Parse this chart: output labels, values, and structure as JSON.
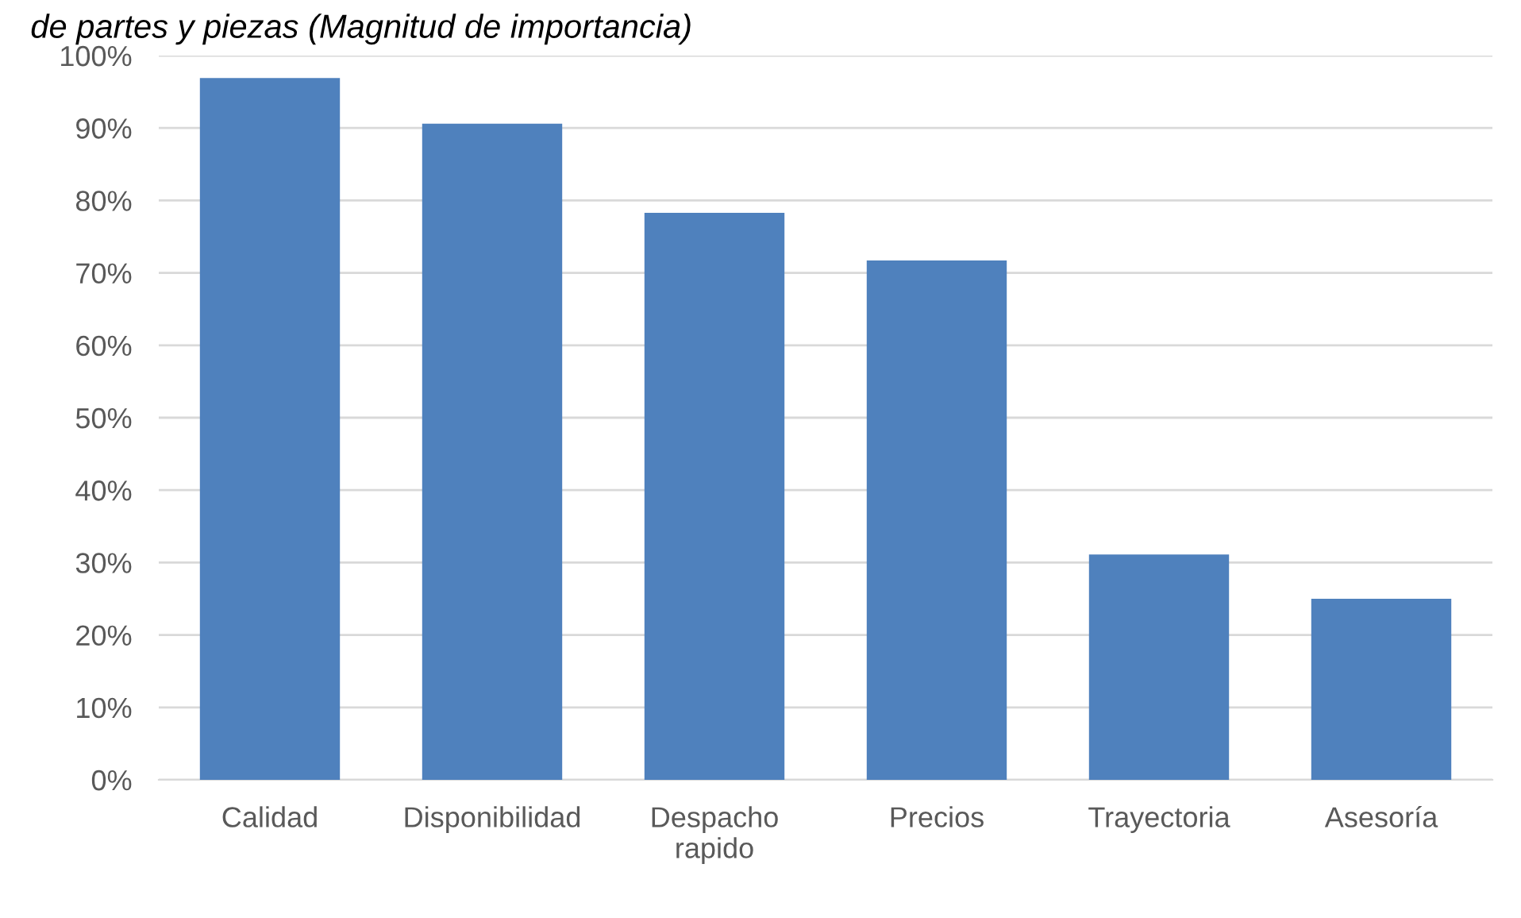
{
  "chart_data": {
    "type": "bar",
    "title": "de partes y piezas (Magnitud de importancia)",
    "categories": [
      "Calidad",
      "Disponibilidad",
      "Despacho\nrapido",
      "Precios",
      "Trayectoria",
      "Asesoría"
    ],
    "values": [
      96.9,
      90.6,
      78.3,
      71.7,
      31.1,
      25.0
    ],
    "color": "#4f81bd",
    "ylim": [
      0,
      100
    ],
    "yticks": [
      {
        "value": 0,
        "label": "0%"
      },
      {
        "value": 10,
        "label": "10%"
      },
      {
        "value": 20,
        "label": "20%"
      },
      {
        "value": 30,
        "label": "30%"
      },
      {
        "value": 40,
        "label": "40%"
      },
      {
        "value": 50,
        "label": "50%"
      },
      {
        "value": 60,
        "label": "60%"
      },
      {
        "value": 70,
        "label": "70%"
      },
      {
        "value": 80,
        "label": "80%"
      },
      {
        "value": 90,
        "label": "90%"
      },
      {
        "value": 100,
        "label": "100%"
      }
    ],
    "grid": "y",
    "legend": false
  }
}
